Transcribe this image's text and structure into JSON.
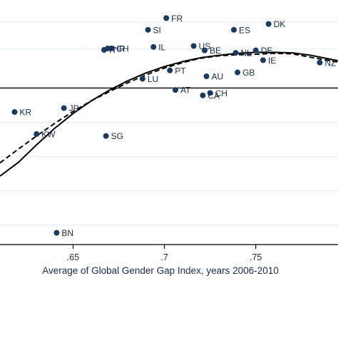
{
  "chart_data": {
    "type": "scatter",
    "xlabel": "Average of Global Gender Gap Index, years 2006-2010",
    "ylabel": "",
    "xlim": [
      0.61,
      0.795
    ],
    "ylim": [
      -0.32,
      0.18
    ],
    "x_ticks": [
      0.65,
      0.7,
      0.75
    ],
    "x_tick_labels": [
      ".65",
      ".7",
      ".75"
    ],
    "y_gridlines": [
      0.135,
      0.08,
      0.0,
      -0.07,
      -0.14,
      -0.21,
      -0.28
    ],
    "reference_line_y": 0.0,
    "grid": true,
    "point_color": "#1a3a5f",
    "line_color": "#000000",
    "points": [
      {
        "label": "FR",
        "x": 0.701,
        "y": 0.143
      },
      {
        "label": "DK",
        "x": 0.757,
        "y": 0.131
      },
      {
        "label": "SI",
        "x": 0.691,
        "y": 0.119
      },
      {
        "label": "ES",
        "x": 0.738,
        "y": 0.119
      },
      {
        "label": "IL",
        "x": 0.694,
        "y": 0.084
      },
      {
        "label": "US",
        "x": 0.716,
        "y": 0.086
      },
      {
        "label": "CH",
        "x": 0.671,
        "y": 0.081
      },
      {
        "label": "HR",
        "x": 0.669,
        "y": 0.081
      },
      {
        "label": "IT",
        "x": 0.667,
        "y": 0.078
      },
      {
        "label": "BE",
        "x": 0.722,
        "y": 0.077
      },
      {
        "label": "NL",
        "x": 0.739,
        "y": 0.072
      },
      {
        "label": "DE",
        "x": 0.75,
        "y": 0.077
      },
      {
        "label": "IE",
        "x": 0.754,
        "y": 0.057
      },
      {
        "label": "NZ",
        "x": 0.785,
        "y": 0.052
      },
      {
        "label": "GB",
        "x": 0.74,
        "y": 0.032
      },
      {
        "label": "PT",
        "x": 0.703,
        "y": 0.036
      },
      {
        "label": "AU",
        "x": 0.723,
        "y": 0.024
      },
      {
        "label": "LU",
        "x": 0.688,
        "y": 0.019
      },
      {
        "label": "AT",
        "x": 0.706,
        "y": -0.004
      },
      {
        "label": "CH",
        "x": 0.725,
        "y": -0.01
      },
      {
        "label": "CA",
        "x": 0.721,
        "y": -0.015
      },
      {
        "label": "KR",
        "x": 0.618,
        "y": -0.049
      },
      {
        "label": "JP",
        "x": 0.645,
        "y": -0.041
      },
      {
        "label": "KW",
        "x": 0.63,
        "y": -0.094
      },
      {
        "label": "SG",
        "x": 0.668,
        "y": -0.098
      },
      {
        "label": "BN",
        "x": 0.641,
        "y": -0.296
      }
    ],
    "fit_solid": [
      [
        0.61,
        -0.18
      ],
      [
        0.62,
        -0.152
      ],
      [
        0.63,
        -0.116
      ],
      [
        0.64,
        -0.082
      ],
      [
        0.65,
        -0.052
      ],
      [
        0.66,
        -0.026
      ],
      [
        0.67,
        -0.004
      ],
      [
        0.68,
        0.015
      ],
      [
        0.69,
        0.031
      ],
      [
        0.7,
        0.044
      ],
      [
        0.71,
        0.054
      ],
      [
        0.72,
        0.062
      ],
      [
        0.73,
        0.067
      ],
      [
        0.74,
        0.071
      ],
      [
        0.75,
        0.073
      ],
      [
        0.76,
        0.073
      ],
      [
        0.77,
        0.072
      ],
      [
        0.78,
        0.067
      ],
      [
        0.795,
        0.056
      ]
    ],
    "fit_dashed": [
      [
        0.61,
        -0.153
      ],
      [
        0.62,
        -0.125
      ],
      [
        0.63,
        -0.098
      ],
      [
        0.64,
        -0.072
      ],
      [
        0.65,
        -0.048
      ],
      [
        0.66,
        -0.026
      ],
      [
        0.67,
        -0.007
      ],
      [
        0.68,
        0.011
      ],
      [
        0.69,
        0.027
      ],
      [
        0.7,
        0.041
      ],
      [
        0.71,
        0.052
      ],
      [
        0.72,
        0.061
      ],
      [
        0.73,
        0.066
      ],
      [
        0.74,
        0.068
      ],
      [
        0.75,
        0.069
      ],
      [
        0.76,
        0.071
      ],
      [
        0.77,
        0.07
      ],
      [
        0.78,
        0.063
      ],
      [
        0.795,
        0.053
      ]
    ]
  }
}
